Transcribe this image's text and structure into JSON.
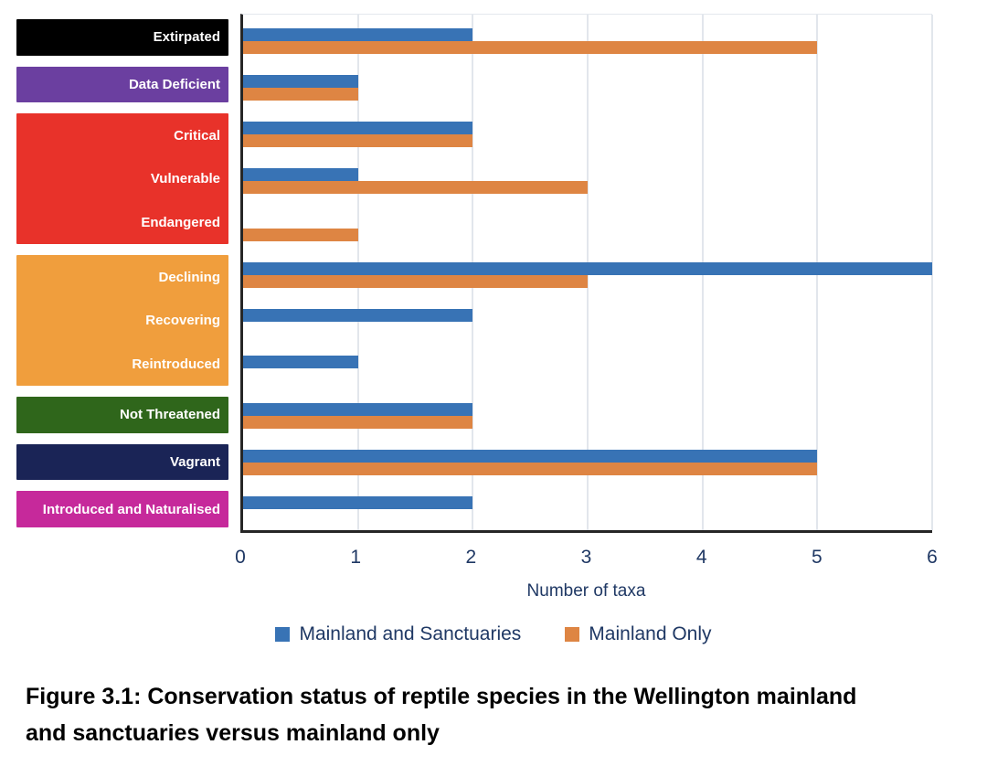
{
  "chart_data": {
    "type": "bar",
    "orientation": "horizontal",
    "categories": [
      "Extirpated",
      "Data Deficient",
      "Critical",
      "Vulnerable",
      "Endangered",
      "Declining",
      "Recovering",
      "Reintroduced",
      "Not Threatened",
      "Vagrant",
      "Introduced and Naturalised"
    ],
    "series": [
      {
        "name": "Mainland and Sanctuaries",
        "color": "#3873b5",
        "values": [
          2,
          1,
          2,
          1,
          0,
          6,
          2,
          1,
          2,
          5,
          2
        ]
      },
      {
        "name": "Mainland Only",
        "color": "#de8543",
        "values": [
          5,
          1,
          2,
          3,
          1,
          3,
          0,
          0,
          2,
          5,
          0
        ]
      }
    ],
    "xlabel": "Number of taxa",
    "xlim": [
      0,
      6
    ],
    "xticks": [
      "0",
      "1",
      "2",
      "3",
      "4",
      "5",
      "6"
    ],
    "grid": "vertical",
    "legend_position": "bottom"
  },
  "category_groups": [
    {
      "name": "extirpated",
      "color": "#000000",
      "categories": [
        "Extirpated"
      ]
    },
    {
      "name": "data-deficient",
      "color": "#6b3fa0",
      "categories": [
        "Data Deficient"
      ]
    },
    {
      "name": "threatened",
      "color": "#e8322a",
      "categories": [
        "Critical",
        "Vulnerable",
        "Endangered"
      ]
    },
    {
      "name": "at-risk",
      "color": "#f09e3d",
      "categories": [
        "Declining",
        "Recovering",
        "Reintroduced"
      ]
    },
    {
      "name": "not-threatened",
      "color": "#2f661b",
      "categories": [
        "Not Threatened"
      ]
    },
    {
      "name": "vagrant",
      "color": "#1a2456",
      "categories": [
        "Vagrant"
      ]
    },
    {
      "name": "introduced",
      "color": "#c6299b",
      "categories": [
        "Introduced and Naturalised"
      ]
    }
  ],
  "caption": {
    "line1": "Figure 3.1: Conservation status of reptile species in the Wellington mainland",
    "line2": "and sanctuaries versus mainland only"
  },
  "colors": {
    "axis_line": "#262626",
    "axis_text": "#1f3864",
    "gridline": "#e2e6ec",
    "caption_text": "#000000"
  }
}
